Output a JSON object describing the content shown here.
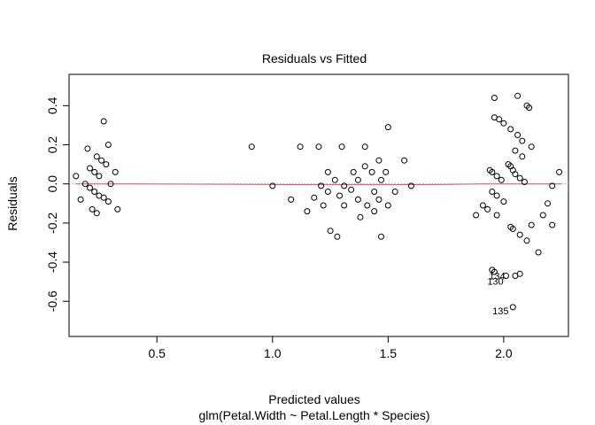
{
  "chart_data": {
    "type": "scatter",
    "title": "Residuals vs Fitted",
    "xlabel": "Predicted values",
    "subtitle": "glm(Petal.Width ~ Petal.Length * Species)",
    "ylabel": "Residuals",
    "xlim": [
      0.12,
      2.28
    ],
    "ylim": [
      -0.78,
      0.56
    ],
    "x_ticks": [
      0.5,
      1.0,
      1.5,
      2.0
    ],
    "x_tick_labels": [
      "0.5",
      "1.0",
      "1.5",
      "2.0"
    ],
    "y_ticks": [
      -0.6,
      -0.4,
      -0.2,
      0.0,
      0.2,
      0.4
    ],
    "y_tick_labels": [
      "-0.6",
      "-0.4",
      "-0.2",
      "0.0",
      "0.2",
      "0.4"
    ],
    "reference_line": {
      "y": 0,
      "style": "dotted",
      "color": "#999999"
    },
    "smooth_color": "#DF536B",
    "smooth_line": [
      [
        0.15,
        0.0
      ],
      [
        0.4,
        0.0
      ],
      [
        0.8,
        -0.002
      ],
      [
        1.2,
        -0.004
      ],
      [
        1.5,
        -0.004
      ],
      [
        1.72,
        -0.003
      ],
      [
        1.9,
        0.0
      ],
      [
        2.25,
        0.0
      ]
    ],
    "points": [
      [
        0.15,
        0.04
      ],
      [
        0.17,
        -0.08
      ],
      [
        0.19,
        0.0
      ],
      [
        0.2,
        0.18
      ],
      [
        0.21,
        0.08
      ],
      [
        0.21,
        -0.02
      ],
      [
        0.22,
        -0.13
      ],
      [
        0.23,
        0.06
      ],
      [
        0.23,
        -0.04
      ],
      [
        0.24,
        0.14
      ],
      [
        0.24,
        -0.15
      ],
      [
        0.25,
        0.04
      ],
      [
        0.25,
        -0.06
      ],
      [
        0.26,
        0.12
      ],
      [
        0.27,
        0.32
      ],
      [
        0.27,
        -0.07
      ],
      [
        0.28,
        0.1
      ],
      [
        0.29,
        0.2
      ],
      [
        0.29,
        -0.09
      ],
      [
        0.3,
        0.0
      ],
      [
        0.32,
        0.06
      ],
      [
        0.33,
        -0.13
      ],
      [
        0.91,
        0.19
      ],
      [
        1.0,
        -0.01
      ],
      [
        1.08,
        -0.08
      ],
      [
        1.12,
        0.19
      ],
      [
        1.15,
        -0.14
      ],
      [
        1.18,
        -0.07
      ],
      [
        1.2,
        0.19
      ],
      [
        1.21,
        -0.01
      ],
      [
        1.22,
        -0.11
      ],
      [
        1.24,
        0.06
      ],
      [
        1.24,
        -0.04
      ],
      [
        1.25,
        -0.24
      ],
      [
        1.27,
        0.02
      ],
      [
        1.28,
        -0.27
      ],
      [
        1.29,
        -0.06
      ],
      [
        1.3,
        0.19
      ],
      [
        1.31,
        -0.01
      ],
      [
        1.31,
        -0.11
      ],
      [
        1.34,
        -0.03
      ],
      [
        1.35,
        0.06
      ],
      [
        1.37,
        0.02
      ],
      [
        1.37,
        -0.08
      ],
      [
        1.38,
        -0.17
      ],
      [
        1.4,
        0.09
      ],
      [
        1.4,
        0.19
      ],
      [
        1.41,
        -0.11
      ],
      [
        1.43,
        0.06
      ],
      [
        1.44,
        -0.04
      ],
      [
        1.44,
        -0.14
      ],
      [
        1.46,
        0.12
      ],
      [
        1.46,
        -0.08
      ],
      [
        1.47,
        0.02
      ],
      [
        1.47,
        -0.27
      ],
      [
        1.49,
        0.06
      ],
      [
        1.5,
        -0.11
      ],
      [
        1.5,
        0.29
      ],
      [
        1.53,
        -0.04
      ],
      [
        1.57,
        0.12
      ],
      [
        1.6,
        -0.01
      ],
      [
        1.88,
        -0.16
      ],
      [
        1.91,
        -0.11
      ],
      [
        1.93,
        -0.13
      ],
      [
        1.94,
        0.07
      ],
      [
        1.95,
        0.06
      ],
      [
        1.95,
        -0.04
      ],
      [
        1.95,
        -0.44
      ],
      [
        1.96,
        0.34
      ],
      [
        1.96,
        0.44
      ],
      [
        1.96,
        -0.45
      ],
      [
        1.97,
        0.04
      ],
      [
        1.97,
        -0.06
      ],
      [
        1.97,
        -0.16
      ],
      [
        1.98,
        0.33
      ],
      [
        1.99,
        0.02
      ],
      [
        2.0,
        0.31
      ],
      [
        2.0,
        -0.09
      ],
      [
        2.01,
        -0.47
      ],
      [
        2.02,
        0.1
      ],
      [
        2.03,
        0.28
      ],
      [
        2.03,
        0.09
      ],
      [
        2.03,
        -0.22
      ],
      [
        2.04,
        0.07
      ],
      [
        2.04,
        -0.23
      ],
      [
        2.05,
        0.17
      ],
      [
        2.05,
        0.05
      ],
      [
        2.05,
        -0.47
      ],
      [
        2.06,
        0.45
      ],
      [
        2.06,
        0.25
      ],
      [
        2.07,
        0.03
      ],
      [
        2.07,
        -0.26
      ],
      [
        2.07,
        -0.46
      ],
      [
        2.08,
        0.14
      ],
      [
        2.08,
        0.22
      ],
      [
        2.09,
        0.01
      ],
      [
        2.1,
        0.4
      ],
      [
        2.1,
        -0.29
      ],
      [
        2.11,
        0.39
      ],
      [
        2.12,
        0.19
      ],
      [
        2.12,
        -0.21
      ],
      [
        2.15,
        -0.35
      ],
      [
        2.17,
        -0.16
      ],
      [
        2.19,
        -0.1
      ],
      [
        2.21,
        -0.01
      ],
      [
        2.21,
        -0.21
      ],
      [
        2.24,
        0.06
      ],
      [
        2.04,
        -0.63
      ]
    ],
    "labeled_points": [
      {
        "label": "134",
        "x": 2.01,
        "y": -0.47,
        "dx": -10,
        "dy": 0
      },
      {
        "label": "130",
        "x": 2.01,
        "y": -0.47,
        "dx": -12,
        "dy": 6
      },
      {
        "label": "135",
        "x": 2.04,
        "y": -0.63,
        "dx": -14,
        "dy": 4
      }
    ]
  }
}
